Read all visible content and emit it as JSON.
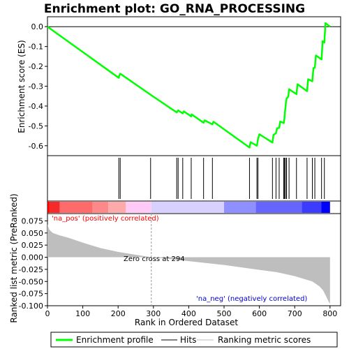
{
  "chart_data": {
    "type": "line",
    "title": "Enrichment plot: GO_RNA_PROCESSING",
    "xlabel": "Rank in Ordered Dataset",
    "xlim": [
      0,
      830
    ],
    "x_ticks": [
      0,
      100,
      200,
      300,
      400,
      500,
      600,
      700,
      800
    ],
    "n_genes": 800,
    "top_panel": {
      "ylabel": "Enrichment score (ES)",
      "ylim": [
        -0.65,
        0.05
      ],
      "y_ticks": [
        0.0,
        -0.1,
        -0.2,
        -0.3,
        -0.4,
        -0.5,
        -0.6
      ],
      "y_tick_labels": [
        "0.0",
        "-0.1",
        "-0.2",
        "-0.3",
        "-0.4",
        "-0.5",
        "-0.6"
      ],
      "series": [
        {
          "name": "Enrichment profile",
          "color": "#00ff00",
          "points": [
            [
              0,
              0.0
            ],
            [
              202,
              -0.258
            ],
            [
              203,
              -0.248
            ],
            [
              206,
              -0.237
            ],
            [
              292,
              -0.343
            ],
            [
              366,
              -0.432
            ],
            [
              370,
              -0.422
            ],
            [
              383,
              -0.437
            ],
            [
              386,
              -0.427
            ],
            [
              407,
              -0.452
            ],
            [
              408,
              -0.442
            ],
            [
              442,
              -0.484
            ],
            [
              445,
              -0.472
            ],
            [
              467,
              -0.492
            ],
            [
              470,
              -0.479
            ],
            [
              572,
              -0.609
            ],
            [
              575,
              -0.582
            ],
            [
              593,
              -0.6
            ],
            [
              596,
              -0.567
            ],
            [
              600,
              -0.542
            ],
            [
              637,
              -0.584
            ],
            [
              640,
              -0.545
            ],
            [
              647,
              -0.537
            ],
            [
              650,
              -0.512
            ],
            [
              656,
              -0.51
            ],
            [
              659,
              -0.478
            ],
            [
              669,
              -0.486
            ],
            [
              671,
              -0.462
            ],
            [
              672,
              -0.436
            ],
            [
              674,
              -0.405
            ],
            [
              675,
              -0.385
            ],
            [
              677,
              -0.362
            ],
            [
              682,
              -0.352
            ],
            [
              684,
              -0.315
            ],
            [
              705,
              -0.34
            ],
            [
              708,
              -0.29
            ],
            [
              735,
              -0.325
            ],
            [
              738,
              -0.265
            ],
            [
              750,
              -0.275
            ],
            [
              753,
              -0.209
            ],
            [
              757,
              -0.207
            ],
            [
              760,
              -0.145
            ],
            [
              776,
              -0.165
            ],
            [
              779,
              -0.073
            ],
            [
              784,
              -0.08
            ],
            [
              787,
              0.018
            ],
            [
              800,
              0.0
            ]
          ]
        }
      ],
      "zero_line": 0.0
    },
    "hits": [
      202,
      206,
      292,
      366,
      370,
      383,
      407,
      442,
      467,
      572,
      593,
      596,
      637,
      647,
      656,
      669,
      671,
      674,
      677,
      684,
      705,
      735,
      750,
      757,
      776,
      784
    ],
    "ranking_bar": {
      "segments": [
        {
          "from": 0,
          "to": 5,
          "color": "#ff0000"
        },
        {
          "from": 5,
          "to": 35,
          "color": "#f52b2b"
        },
        {
          "from": 35,
          "to": 128,
          "color": "#ff6a6a"
        },
        {
          "from": 128,
          "to": 172,
          "color": "#ff8888"
        },
        {
          "from": 172,
          "to": 222,
          "color": "#ffaaaa"
        },
        {
          "from": 222,
          "to": 294,
          "color": "#ffcaf5"
        },
        {
          "from": 294,
          "to": 500,
          "color": "#d8d0ff"
        },
        {
          "from": 500,
          "to": 590,
          "color": "#8f8fff"
        },
        {
          "from": 590,
          "to": 720,
          "color": "#6666ff"
        },
        {
          "from": 720,
          "to": 775,
          "color": "#3c3cff"
        },
        {
          "from": 775,
          "to": 800,
          "color": "#0000ff"
        }
      ]
    },
    "bottom_panel": {
      "ylabel": "Ranked list metric (PreRanked)",
      "ylim": [
        -0.1,
        0.09
      ],
      "y_ticks": [
        0.075,
        0.05,
        0.025,
        0.0,
        -0.025,
        -0.05,
        -0.075,
        -0.1
      ],
      "y_tick_labels": [
        "0.075",
        "0.050",
        "0.025",
        "0.000",
        "-0.025",
        "-0.050",
        "-0.075",
        "-0.100"
      ],
      "fill_color": "#bebebe",
      "metric_points": [
        [
          0,
          0.068
        ],
        [
          5,
          0.057
        ],
        [
          15,
          0.05
        ],
        [
          35,
          0.045
        ],
        [
          60,
          0.04
        ],
        [
          100,
          0.03
        ],
        [
          150,
          0.019
        ],
        [
          200,
          0.011
        ],
        [
          250,
          0.005
        ],
        [
          294,
          0.0
        ],
        [
          350,
          -0.004
        ],
        [
          400,
          -0.008
        ],
        [
          450,
          -0.012
        ],
        [
          500,
          -0.016
        ],
        [
          550,
          -0.021
        ],
        [
          600,
          -0.026
        ],
        [
          650,
          -0.031
        ],
        [
          700,
          -0.039
        ],
        [
          750,
          -0.05
        ],
        [
          770,
          -0.06
        ],
        [
          780,
          -0.068
        ],
        [
          790,
          -0.082
        ],
        [
          795,
          -0.09
        ],
        [
          800,
          -0.096
        ]
      ],
      "zero_cross": 294,
      "zero_cross_label": "Zero cross at 294",
      "pos_label": "'na_pos' (positively correlated)",
      "neg_label": "'na_neg' (negatively correlated)",
      "pos_color": "#ff0000",
      "neg_color": "#0000cc"
    },
    "legend": {
      "placement": "bottom",
      "items": [
        {
          "label": "Enrichment profile",
          "color": "#00ff00",
          "style": "thick-line"
        },
        {
          "label": "Hits",
          "color": "#000000",
          "style": "line"
        },
        {
          "label": "Ranking metric scores",
          "color": "#bebebe",
          "style": "line"
        }
      ]
    }
  }
}
